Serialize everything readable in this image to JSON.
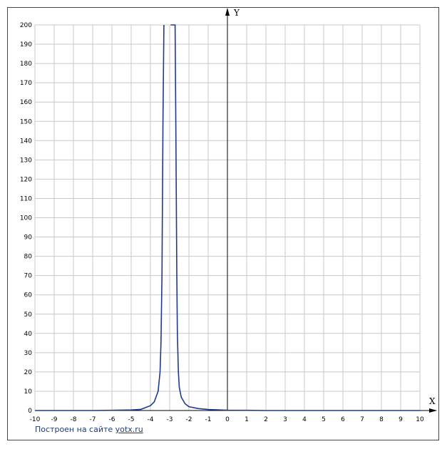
{
  "chart_data": {
    "type": "line",
    "title": "",
    "xlabel": "X",
    "ylabel": "Y",
    "xlim": [
      -10,
      10
    ],
    "ylim": [
      0,
      200
    ],
    "x_ticks": [
      "-10",
      "-9",
      "-8",
      "-7",
      "-6",
      "-5",
      "-4",
      "-3",
      "-2",
      "-1",
      "0",
      "1",
      "2",
      "3",
      "4",
      "5",
      "6",
      "7",
      "8",
      "9",
      "10"
    ],
    "y_ticks": [
      "0",
      "10",
      "20",
      "30",
      "40",
      "50",
      "60",
      "70",
      "80",
      "90",
      "100",
      "110",
      "120",
      "130",
      "140",
      "150",
      "160",
      "170",
      "180",
      "190",
      "200"
    ],
    "grid": true,
    "line_color": "#1f3a8c",
    "series": [
      {
        "x": [
          -10,
          -9,
          -8,
          -7,
          -6,
          -5,
          -4.5,
          -4,
          -3.8,
          -3.6,
          -3.5,
          -3.45,
          -3.4,
          -3.35,
          -3.3,
          -3.05,
          -2.95,
          -2.72,
          -2.68,
          -2.63,
          -2.6,
          -2.55,
          -2.5,
          -2.4,
          -2.2,
          -2,
          -1.5,
          -1,
          0,
          1,
          2,
          3,
          4,
          5,
          6,
          7,
          8,
          9,
          10
        ],
        "y": [
          0,
          0,
          0,
          0,
          0.1,
          0.3,
          0.6,
          2.5,
          4.5,
          10,
          20,
          35,
          70,
          150,
          200,
          "gap",
          200,
          200,
          150,
          70,
          40,
          20,
          12,
          7,
          3.5,
          2,
          1,
          0.5,
          0.2,
          0.1,
          0,
          0,
          0,
          0,
          0,
          0,
          0,
          0,
          0
        ]
      }
    ]
  },
  "credit": {
    "prefix": "Построен на сайте ",
    "link": "yotx.ru"
  }
}
